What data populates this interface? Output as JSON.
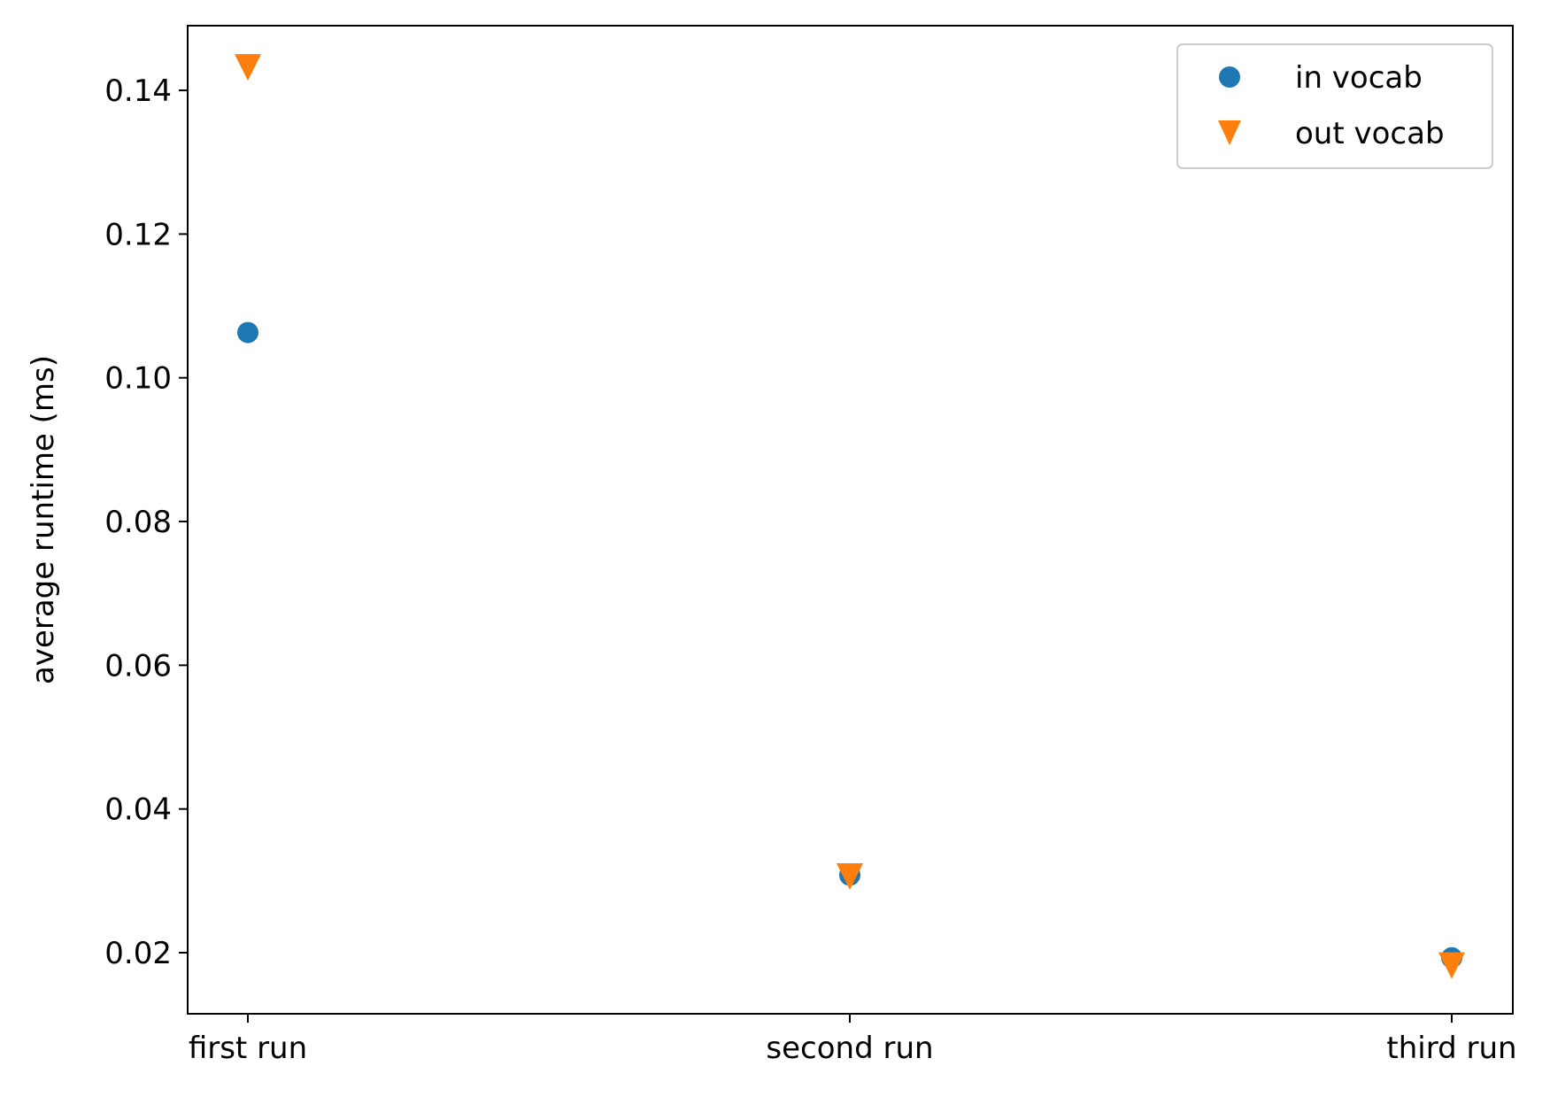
{
  "chart_data": {
    "type": "scatter",
    "title": "",
    "xlabel": "",
    "ylabel": "average runtime (ms)",
    "categories": [
      "first run",
      "second run",
      "third run"
    ],
    "yticks": [
      0.02,
      0.04,
      0.06,
      0.08,
      0.1,
      0.12,
      0.14
    ],
    "ytick_labels": [
      "0.02",
      "0.04",
      "0.06",
      "0.08",
      "0.10",
      "0.12",
      "0.14"
    ],
    "ylim": [
      0.0115,
      0.149
    ],
    "grid": false,
    "legend_position": "top-right",
    "series": [
      {
        "name": "in vocab",
        "marker": "circle",
        "color": "#1f77b4",
        "values": [
          0.1063,
          0.0308,
          0.0193
        ]
      },
      {
        "name": "out vocab",
        "marker": "triangle-down",
        "color": "#ff7f0e",
        "values": [
          0.1432,
          0.0306,
          0.0182
        ]
      }
    ]
  }
}
